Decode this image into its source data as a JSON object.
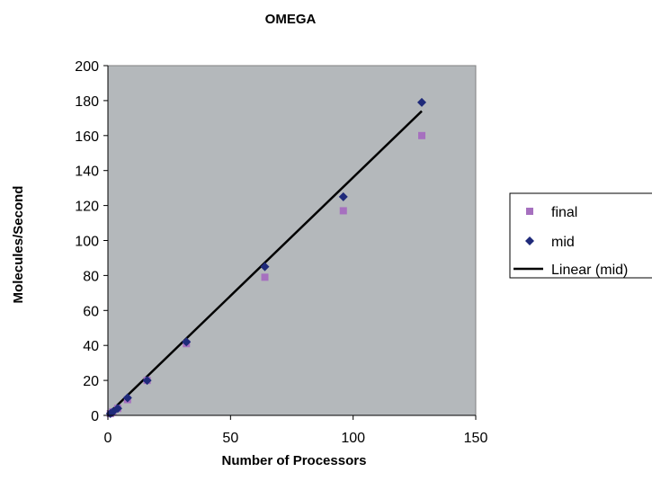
{
  "chart_data": {
    "type": "scatter",
    "title": "OMEGA",
    "xlabel": "Number of Processors",
    "ylabel": "Molecules/Second",
    "xlim": [
      0,
      150
    ],
    "ylim": [
      0,
      200
    ],
    "xticks": [
      0,
      50,
      100,
      150
    ],
    "yticks": [
      0,
      20,
      40,
      60,
      80,
      100,
      120,
      140,
      160,
      180,
      200
    ],
    "grid": false,
    "plot_background": "#b4b8bb",
    "legend_position": "right",
    "series": [
      {
        "name": "final",
        "marker": "square",
        "color": "#a670bf",
        "points": [
          [
            1,
            1
          ],
          [
            2,
            2
          ],
          [
            4,
            4
          ],
          [
            8,
            9
          ],
          [
            16,
            20
          ],
          [
            32,
            41
          ],
          [
            64,
            79
          ],
          [
            96,
            117
          ],
          [
            128,
            160
          ]
        ]
      },
      {
        "name": "mid",
        "marker": "diamond",
        "color": "#1f2a7a",
        "points": [
          [
            1,
            1
          ],
          [
            2,
            2
          ],
          [
            4,
            4
          ],
          [
            8,
            10
          ],
          [
            16,
            20
          ],
          [
            32,
            42
          ],
          [
            64,
            85
          ],
          [
            96,
            125
          ],
          [
            128,
            179
          ]
        ]
      }
    ],
    "trendline": {
      "name": "Linear (mid)",
      "of": "mid",
      "color": "#000000",
      "x": [
        1,
        128
      ],
      "y": [
        2,
        174
      ]
    }
  }
}
